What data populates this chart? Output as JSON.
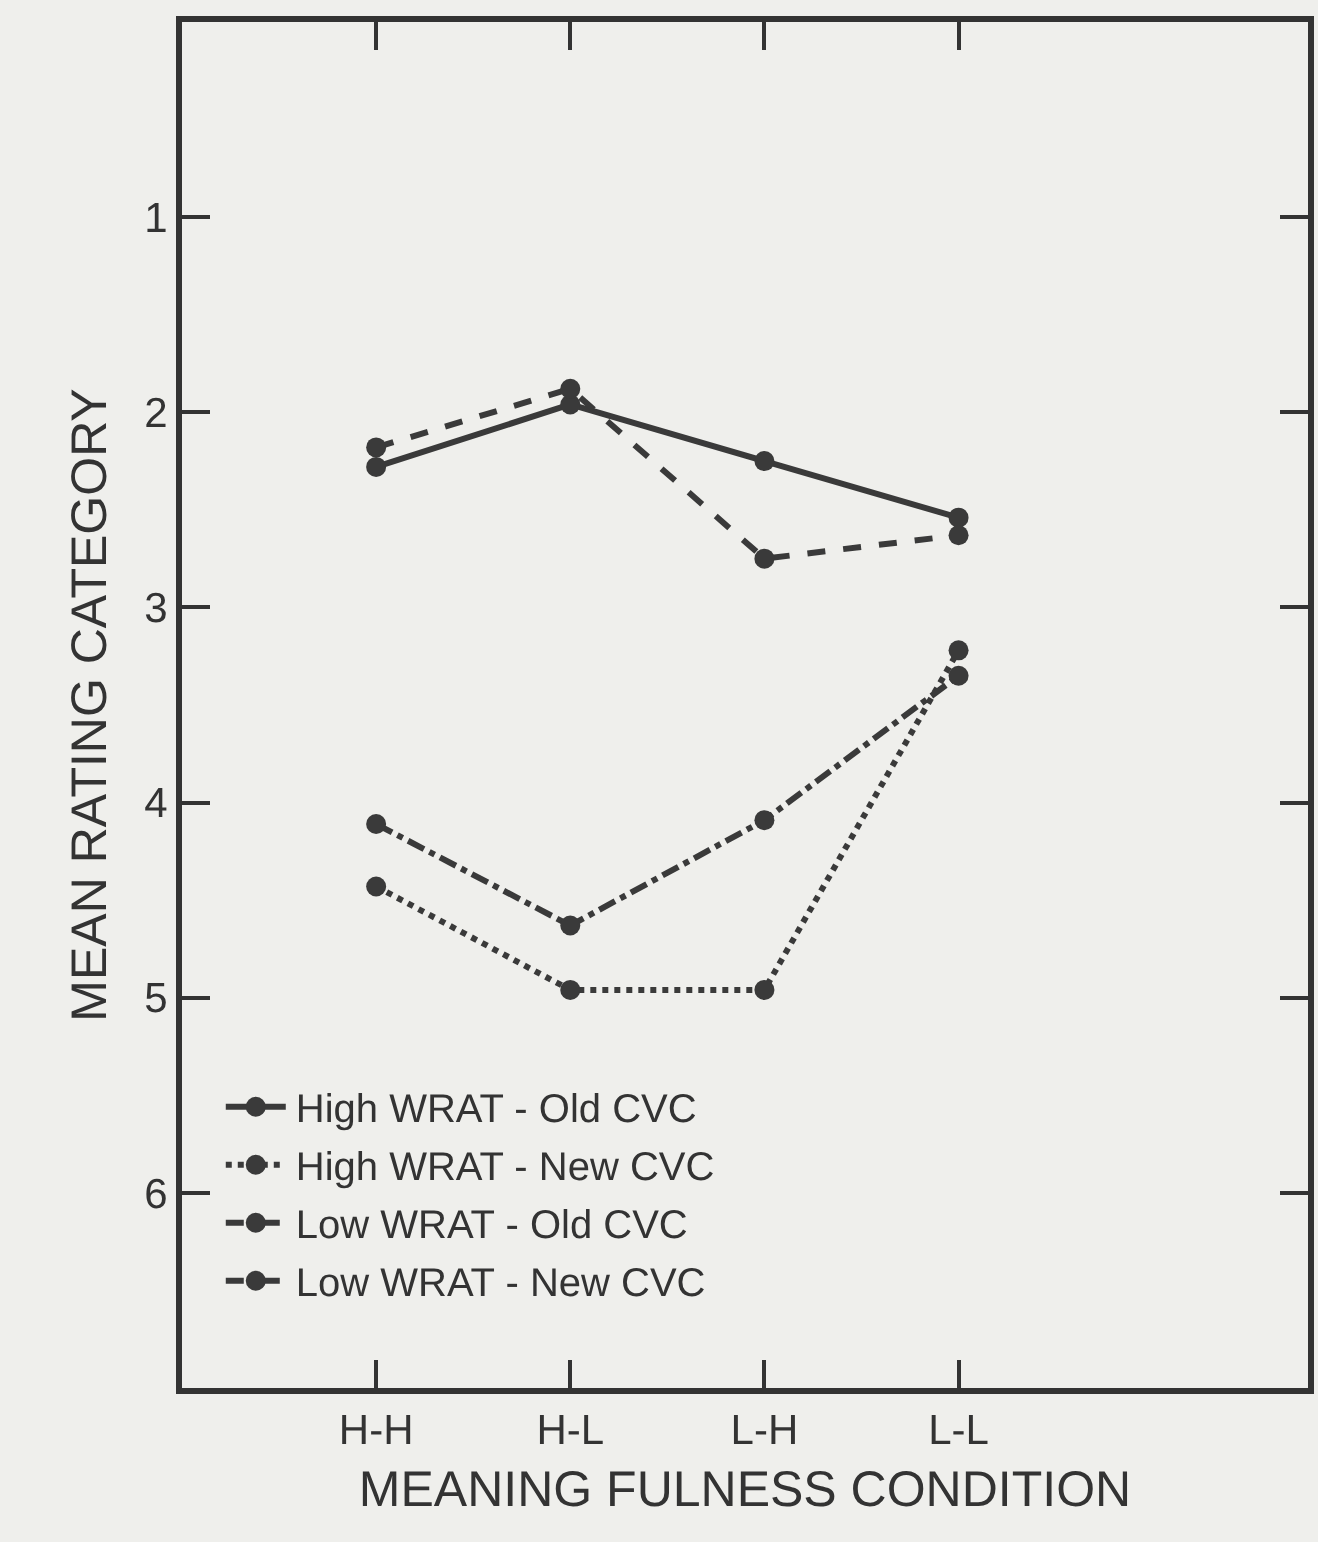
{
  "chart_data": {
    "type": "line",
    "xlabel": "MEANING FULNESS CONDITION",
    "ylabel": "MEAN RATING CATEGORY",
    "categories": [
      "H-H",
      "H-L",
      "L-H",
      "L-L"
    ],
    "series": [
      {
        "name": "High WRAT - Old CVC",
        "color": "#3a3a3a",
        "line_style": "solid",
        "values": [
          2.28,
          1.96,
          2.25,
          2.54
        ]
      },
      {
        "name": "High WRAT - New CVC",
        "color": "#3a3a3a",
        "line_style": "dotted",
        "values": [
          4.43,
          4.96,
          4.96,
          3.22
        ]
      },
      {
        "name": "Low WRAT - Old CVC",
        "color": "#3a3a3a",
        "line_style": "dashed",
        "values": [
          2.18,
          1.88,
          2.75,
          2.63
        ]
      },
      {
        "name": "Low WRAT - New CVC",
        "color": "#3a3a3a",
        "line_style": "dashdot",
        "values": [
          4.11,
          4.63,
          4.09,
          3.35
        ]
      }
    ],
    "ylim": [
      7,
      0
    ],
    "yticks": [
      1,
      2,
      3,
      4,
      5,
      6
    ],
    "grid": false,
    "legend": "bottom left",
    "marker": "circle"
  }
}
